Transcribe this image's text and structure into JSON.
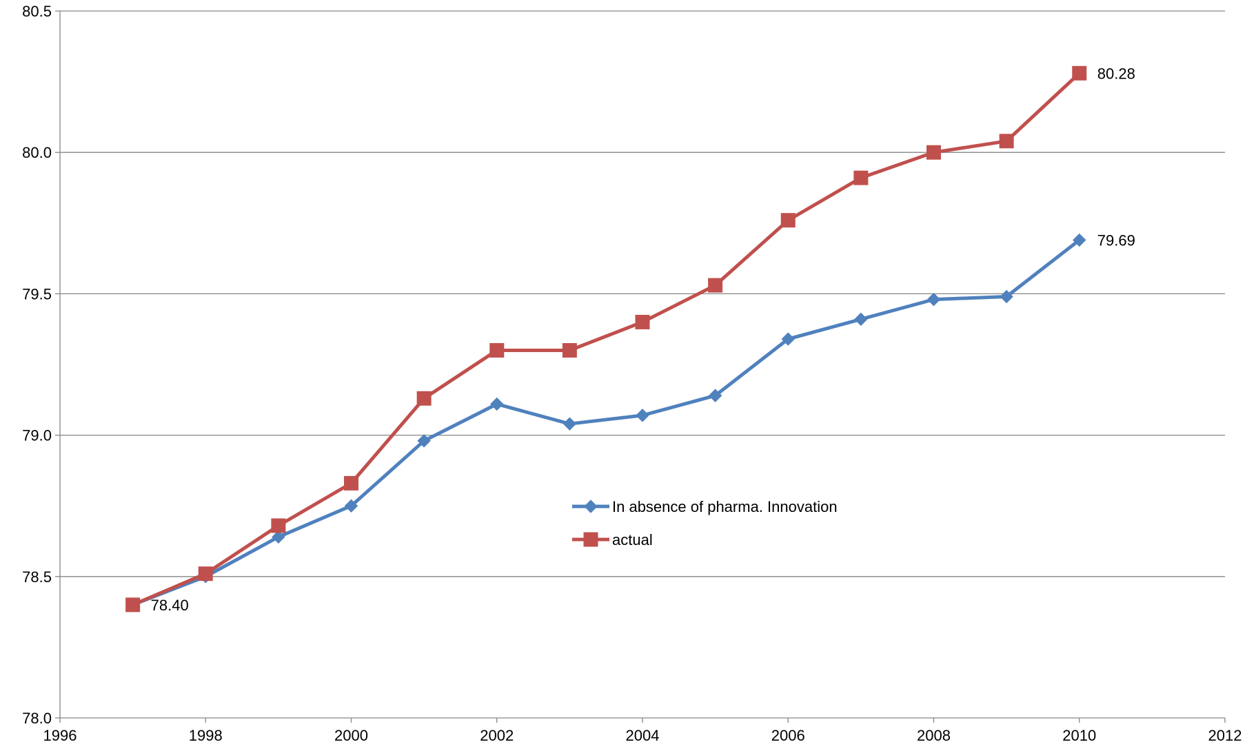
{
  "chart_data": {
    "type": "line",
    "title": "",
    "xlabel": "",
    "ylabel": "",
    "xlim": [
      1996,
      2012
    ],
    "ylim": [
      78.0,
      80.5
    ],
    "x_ticks": [
      1996,
      1998,
      2000,
      2002,
      2004,
      2006,
      2008,
      2010,
      2012
    ],
    "y_ticks": [
      78.0,
      78.5,
      79.0,
      79.5,
      80.0,
      80.5
    ],
    "y_tick_labels": [
      "78.0",
      "78.5",
      "79.0",
      "79.5",
      "80.0",
      "80.5"
    ],
    "grid": "horizontal major gridlines",
    "legend_position": "center",
    "series": [
      {
        "name": "In absence of pharma. Innovation",
        "color": "#4f81bd",
        "marker": "diamond",
        "x": [
          1997,
          1998,
          1999,
          2000,
          2001,
          2002,
          2003,
          2004,
          2005,
          2006,
          2007,
          2008,
          2009,
          2010
        ],
        "values": [
          78.4,
          78.5,
          78.64,
          78.75,
          78.98,
          79.11,
          79.04,
          79.07,
          79.14,
          79.34,
          79.41,
          79.48,
          79.49,
          79.69
        ]
      },
      {
        "name": "actual",
        "color": "#c0504d",
        "marker": "square",
        "x": [
          1997,
          1998,
          1999,
          2000,
          2001,
          2002,
          2003,
          2004,
          2005,
          2006,
          2007,
          2008,
          2009,
          2010
        ],
        "values": [
          78.4,
          78.51,
          78.68,
          78.83,
          79.13,
          79.3,
          79.3,
          79.4,
          79.53,
          79.76,
          79.91,
          80.0,
          80.04,
          80.28
        ]
      }
    ],
    "annotations": [
      {
        "series": 0,
        "x": 2010,
        "text": "79.69"
      },
      {
        "series": 1,
        "x": 2010,
        "text": "80.28"
      },
      {
        "series": 1,
        "x": 1997,
        "text": "78.40"
      }
    ]
  }
}
